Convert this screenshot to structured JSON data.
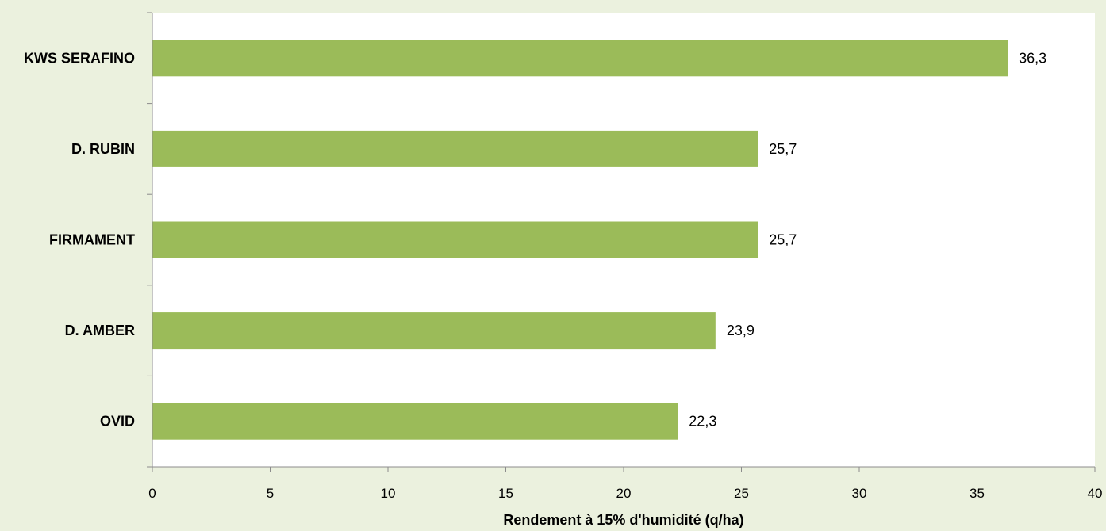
{
  "chart_data": {
    "type": "bar",
    "orientation": "horizontal",
    "categories": [
      "KWS SERAFINO",
      "D. RUBIN",
      "FIRMAMENT",
      "D. AMBER",
      "OVID"
    ],
    "values": [
      36.3,
      25.7,
      25.7,
      23.9,
      22.3
    ],
    "value_labels": [
      "36,3",
      "25,7",
      "25,7",
      "23,9",
      "22,3"
    ],
    "xlabel": "Rendement à 15% d'humidité (q/ha)",
    "ylabel": "",
    "xlim": [
      0,
      40
    ],
    "xticks": [
      0,
      5,
      10,
      15,
      20,
      25,
      30,
      35,
      40
    ],
    "grid": false,
    "legend": "none",
    "colors": {
      "bar": "#9bbb59",
      "plot_background": "#ffffff",
      "page_background": "#ebf1de",
      "axis": "#8c8c8c"
    }
  }
}
